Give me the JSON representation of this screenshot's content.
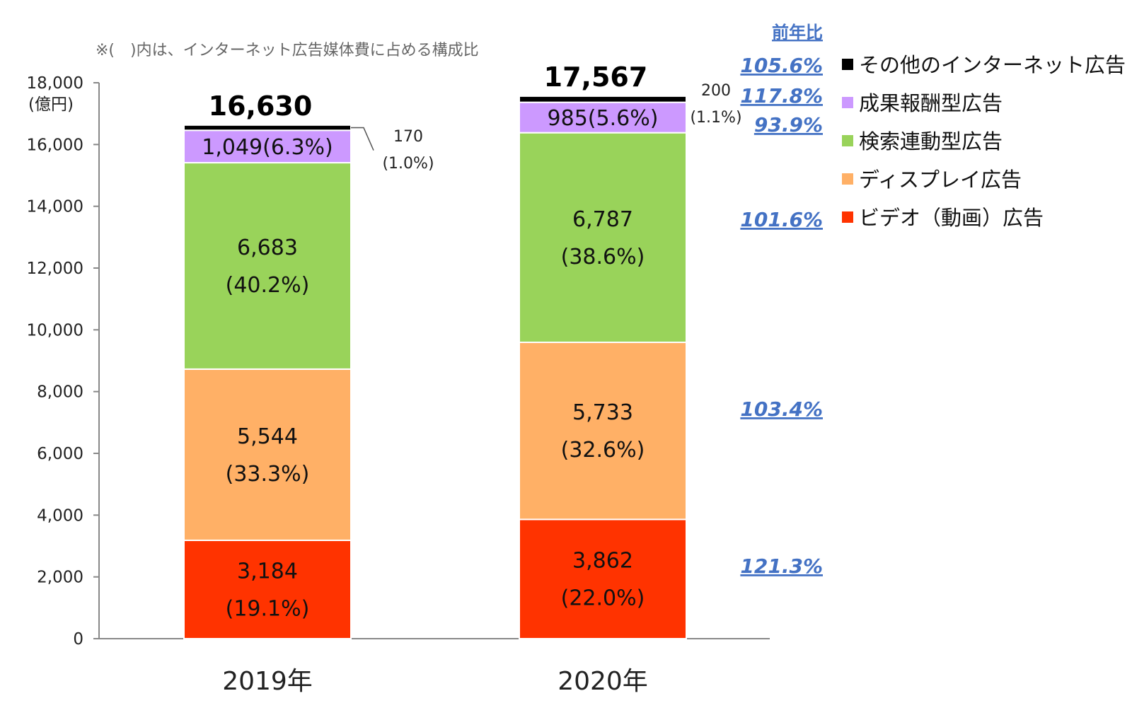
{
  "chart_data": {
    "type": "bar",
    "stacked": true,
    "note": "※(　)内は、インターネット広告媒体費に占める構成比",
    "y_unit": "(億円)",
    "ylim": [
      0,
      18000
    ],
    "y_ticks": [
      0,
      2000,
      4000,
      6000,
      8000,
      10000,
      12000,
      14000,
      16000,
      18000
    ],
    "y_tick_labels": [
      "0",
      "2,000",
      "4,000",
      "6,000",
      "8,000",
      "10,000",
      "12,000",
      "14,000",
      "16,000",
      "18,000"
    ],
    "categories": [
      "2019年",
      "2020年"
    ],
    "totals": [
      "16,630",
      "17,567"
    ],
    "series": [
      {
        "name": "ビデオ（動画）広告",
        "color": "#ff3300",
        "values": [
          3184,
          3862
        ],
        "labels": [
          [
            "3,184",
            "(19.1%)"
          ],
          [
            "3,862",
            "(22.0%)"
          ]
        ],
        "yoy": "121.3%"
      },
      {
        "name": "ディスプレイ広告",
        "color": "#ffb066",
        "values": [
          5544,
          5733
        ],
        "labels": [
          [
            "5,544",
            "(33.3%)"
          ],
          [
            "5,733",
            "(32.6%)"
          ]
        ],
        "yoy": "103.4%"
      },
      {
        "name": "検索連動型広告",
        "color": "#99d35a",
        "values": [
          6683,
          6787
        ],
        "labels": [
          [
            "6,683",
            "(40.2%)"
          ],
          [
            "6,787",
            "(38.6%)"
          ]
        ],
        "yoy": "101.6%"
      },
      {
        "name": "成果報酬型広告",
        "color": "#cc99ff",
        "values": [
          1049,
          985
        ],
        "labels": [
          [
            "1,049(6.3%)"
          ],
          [
            "985(5.6%)"
          ]
        ],
        "yoy": "93.9%"
      },
      {
        "name": "その他のインターネット広告",
        "color": "#000000",
        "values": [
          170,
          200
        ],
        "labels": [
          [
            "170",
            "(1.0%)"
          ],
          [
            "200",
            "(1.1%)"
          ]
        ],
        "yoy": "117.8%"
      }
    ],
    "yoy_header": "前年比",
    "total_yoy": "105.6%",
    "legend_position": "right",
    "grid": false
  }
}
